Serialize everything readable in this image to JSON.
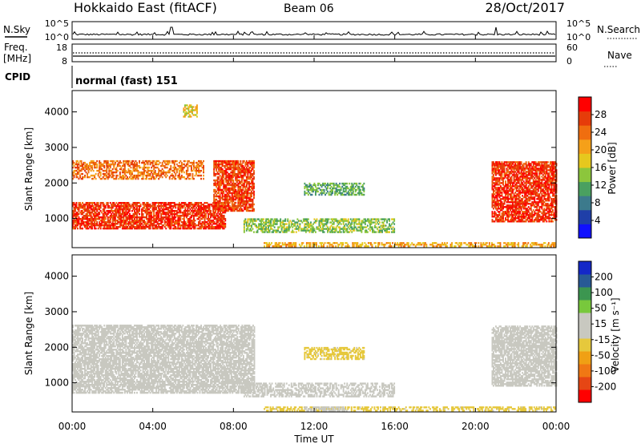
{
  "header": {
    "station": "Hokkaido East (fitACF)",
    "beam": "Beam 06",
    "date": "28/Oct/2017",
    "cpid_label": "CPID",
    "cpid_value": "normal (fast) 151"
  },
  "time_axis": {
    "label": "Time UT",
    "ticks": [
      "00:00",
      "04:00",
      "08:00",
      "12:00",
      "16:00",
      "20:00",
      "00:00"
    ],
    "range_hours": [
      0,
      24
    ]
  },
  "status_panels": {
    "nsky": {
      "label": "N.Sky",
      "ticks": [
        "10^5",
        "10^0"
      ]
    },
    "nsearch": {
      "label": "N.Search",
      "ticks": [
        "10^5",
        "10^0"
      ]
    },
    "freq": {
      "label_top": "Freq.",
      "label_bottom": "[MHz]",
      "ticks": [
        "18",
        "8"
      ]
    },
    "nave": {
      "label": "Nave",
      "ticks": [
        "60",
        "0"
      ]
    }
  },
  "colors": {
    "power_scale": [
      "#1010ff",
      "#1f3fa8",
      "#3c7a8c",
      "#4aa060",
      "#8cc63c",
      "#e6c81e",
      "#f5a019",
      "#f06e0f",
      "#e63c0a",
      "#ff0000"
    ],
    "velocity_scale": [
      "#ff0000",
      "#e64614",
      "#f07814",
      "#f0a014",
      "#e6c83c",
      "#c8c8c0",
      "#c8c8c0",
      "#78c83c",
      "#3c9650",
      "#285a96",
      "#1428c8"
    ]
  },
  "chart_data": [
    {
      "type": "heatmap",
      "title": "Power",
      "xlabel": "Time UT",
      "ylabel": "Slant Range [km]",
      "xlim": [
        0,
        24
      ],
      "ylim": [
        180,
        4600
      ],
      "yticks": [
        1000,
        2000,
        3000,
        4000
      ],
      "colorbar": {
        "label": "Power [dB]",
        "ticks": [
          "4",
          "8",
          "12",
          "16",
          "20",
          "24",
          "28"
        ],
        "range": [
          0,
          32
        ]
      },
      "regions": [
        {
          "t": [
            0.0,
            7.6
          ],
          "r_start": 620,
          "r_slope": 0,
          "band": [
            700,
            1450
          ],
          "value": 28,
          "note": "dayside ionospheric scatter"
        },
        {
          "t": [
            7.0,
            9.0
          ],
          "band": [
            1200,
            2600
          ],
          "value": 27
        },
        {
          "t": [
            0.0,
            6.5
          ],
          "band": [
            2100,
            2600
          ],
          "value": 24
        },
        {
          "t": [
            5.5,
            6.2
          ],
          "band": [
            3850,
            4200
          ],
          "value": 18
        },
        {
          "t": [
            8.5,
            16.0
          ],
          "band": [
            600,
            1000
          ],
          "value": 14
        },
        {
          "t": [
            11.5,
            14.5
          ],
          "band": [
            1650,
            2000
          ],
          "value": 12
        },
        {
          "t": [
            9.5,
            24.0
          ],
          "band": [
            200,
            320
          ],
          "value": 20
        },
        {
          "t": [
            20.8,
            24.0
          ],
          "band": [
            900,
            2600
          ],
          "value": 28
        }
      ]
    },
    {
      "type": "heatmap",
      "title": "Velocity",
      "xlabel": "Time UT",
      "ylabel": "Slant Range [km]",
      "xlim": [
        0,
        24
      ],
      "ylim": [
        180,
        4600
      ],
      "yticks": [
        1000,
        2000,
        3000,
        4000
      ],
      "colorbar": {
        "label": "Velocity [m s⁻¹]",
        "ticks": [
          "-200",
          "-100",
          "-50",
          "-15",
          "15",
          "50",
          "100",
          "200"
        ],
        "range": [
          -250,
          250
        ]
      },
      "regions": [
        {
          "t": [
            0.0,
            9.0
          ],
          "band": [
            700,
            2600
          ],
          "value": 0
        },
        {
          "t": [
            20.8,
            24.0
          ],
          "band": [
            900,
            2600
          ],
          "value": 0
        },
        {
          "t": [
            8.5,
            16.0
          ],
          "band": [
            600,
            1000
          ],
          "value": 0
        },
        {
          "t": [
            11.5,
            14.5
          ],
          "band": [
            1650,
            2000
          ],
          "value": -40
        },
        {
          "t": [
            9.5,
            24.0
          ],
          "band": [
            200,
            320
          ],
          "value": -40
        },
        {
          "t": [
            11.5,
            13.5
          ],
          "band": [
            200,
            320
          ],
          "value": 40
        }
      ]
    }
  ]
}
